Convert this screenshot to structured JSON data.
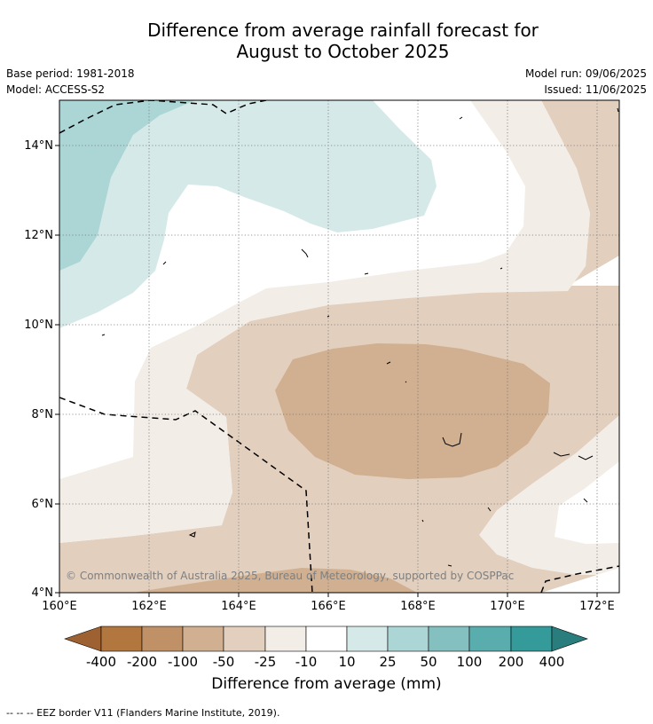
{
  "title": {
    "line1": "Difference from average rainfall forecast for",
    "line2": "August to October 2025"
  },
  "meta": {
    "base_period": "Base period: 1981-2018",
    "model": "Model: ACCESS-S2",
    "model_run": "Model run: 09/06/2025",
    "issued": "Issued: 11/06/2025"
  },
  "map": {
    "x_ticks": [
      "160°E",
      "162°E",
      "164°E",
      "166°E",
      "168°E",
      "170°E",
      "172°E"
    ],
    "y_ticks": [
      "14°N",
      "12°N",
      "10°N",
      "8°N",
      "6°N",
      "4°N"
    ],
    "lon_range": [
      160,
      172.5
    ],
    "lat_range": [
      4,
      15
    ],
    "copyright": "© Commonwealth of Australia 2025, Bureau of Meteorology, supported by COSPPac",
    "colors": {
      "minus400": "#9e6232",
      "minus200": "#b1773f",
      "minus100": "#c09167",
      "minus50": "#d0b091",
      "minus25": "#e2cfbe",
      "minus10": "#f3ede8",
      "neutral": "#ffffff",
      "plus10": "#d5e9e8",
      "plus25": "#abd6d5",
      "plus50": "#85c0c0",
      "plus100": "#5aadad",
      "plus200": "#349b9a",
      "plus400": "#297d7d"
    }
  },
  "colorbar": {
    "labels": [
      "-400",
      "-200",
      "-100",
      "-50",
      "-25",
      "-10",
      "10",
      "25",
      "50",
      "100",
      "200",
      "400"
    ],
    "title": "Difference from average (mm)"
  },
  "footnote": "-- -- -- EEZ border V11 (Flanders Marine Institute, 2019)."
}
